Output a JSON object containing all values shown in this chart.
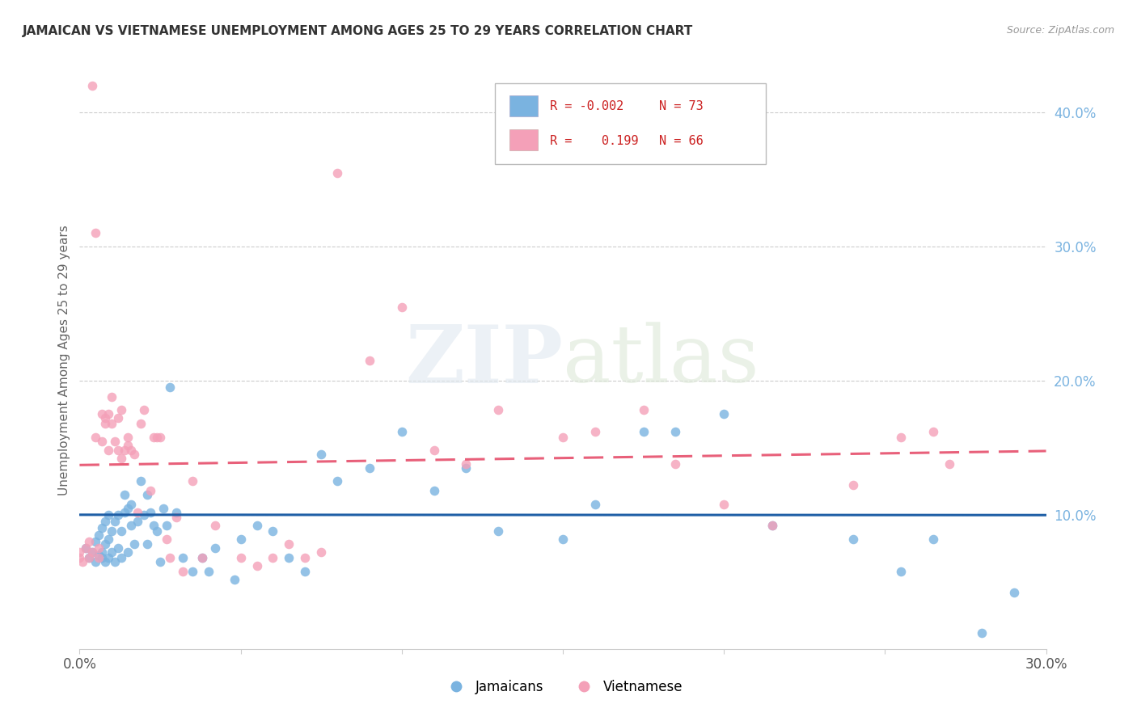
{
  "title": "JAMAICAN VS VIETNAMESE UNEMPLOYMENT AMONG AGES 25 TO 29 YEARS CORRELATION CHART",
  "source": "Source: ZipAtlas.com",
  "ylabel": "Unemployment Among Ages 25 to 29 years",
  "xlim": [
    0.0,
    0.3
  ],
  "ylim": [
    0.0,
    0.43
  ],
  "y_ticks_right": [
    0.1,
    0.2,
    0.3,
    0.4
  ],
  "y_tick_labels_right": [
    "10.0%",
    "20.0%",
    "30.0%",
    "40.0%"
  ],
  "legend_r_blue": "-0.002",
  "legend_n_blue": "73",
  "legend_r_pink": "0.199",
  "legend_n_pink": "66",
  "blue_color": "#7ab3e0",
  "pink_color": "#f4a0b8",
  "trend_blue_color": "#1f5fa6",
  "trend_pink_color": "#e8607a",
  "watermark_zip": "ZIP",
  "watermark_atlas": "atlas",
  "jamaicans_x": [
    0.002,
    0.003,
    0.004,
    0.005,
    0.005,
    0.006,
    0.006,
    0.007,
    0.007,
    0.007,
    0.008,
    0.008,
    0.008,
    0.009,
    0.009,
    0.009,
    0.01,
    0.01,
    0.011,
    0.011,
    0.012,
    0.012,
    0.013,
    0.013,
    0.014,
    0.014,
    0.015,
    0.015,
    0.016,
    0.016,
    0.017,
    0.018,
    0.019,
    0.02,
    0.021,
    0.021,
    0.022,
    0.023,
    0.024,
    0.025,
    0.026,
    0.027,
    0.028,
    0.03,
    0.032,
    0.035,
    0.038,
    0.04,
    0.042,
    0.048,
    0.05,
    0.055,
    0.06,
    0.065,
    0.07,
    0.075,
    0.08,
    0.09,
    0.1,
    0.11,
    0.12,
    0.13,
    0.15,
    0.16,
    0.175,
    0.185,
    0.2,
    0.215,
    0.24,
    0.255,
    0.265,
    0.28,
    0.29
  ],
  "jamaicans_y": [
    0.075,
    0.068,
    0.072,
    0.065,
    0.08,
    0.07,
    0.085,
    0.068,
    0.072,
    0.09,
    0.065,
    0.078,
    0.095,
    0.068,
    0.082,
    0.1,
    0.072,
    0.088,
    0.065,
    0.095,
    0.075,
    0.1,
    0.068,
    0.088,
    0.102,
    0.115,
    0.072,
    0.105,
    0.092,
    0.108,
    0.078,
    0.095,
    0.125,
    0.1,
    0.115,
    0.078,
    0.102,
    0.092,
    0.088,
    0.065,
    0.105,
    0.092,
    0.195,
    0.102,
    0.068,
    0.058,
    0.068,
    0.058,
    0.075,
    0.052,
    0.082,
    0.092,
    0.088,
    0.068,
    0.058,
    0.145,
    0.125,
    0.135,
    0.162,
    0.118,
    0.135,
    0.088,
    0.082,
    0.108,
    0.162,
    0.162,
    0.175,
    0.092,
    0.082,
    0.058,
    0.082,
    0.012,
    0.042
  ],
  "vietnamese_x": [
    0.0,
    0.0,
    0.001,
    0.002,
    0.003,
    0.003,
    0.004,
    0.004,
    0.005,
    0.005,
    0.006,
    0.006,
    0.007,
    0.007,
    0.008,
    0.008,
    0.009,
    0.009,
    0.01,
    0.01,
    0.011,
    0.012,
    0.012,
    0.013,
    0.013,
    0.014,
    0.015,
    0.015,
    0.016,
    0.017,
    0.018,
    0.019,
    0.02,
    0.022,
    0.023,
    0.024,
    0.025,
    0.027,
    0.028,
    0.03,
    0.032,
    0.035,
    0.038,
    0.042,
    0.05,
    0.055,
    0.06,
    0.065,
    0.07,
    0.075,
    0.08,
    0.09,
    0.1,
    0.11,
    0.12,
    0.13,
    0.15,
    0.16,
    0.175,
    0.185,
    0.2,
    0.215,
    0.24,
    0.255,
    0.265,
    0.27
  ],
  "vietnamese_y": [
    0.068,
    0.072,
    0.065,
    0.075,
    0.068,
    0.08,
    0.42,
    0.072,
    0.31,
    0.158,
    0.068,
    0.075,
    0.155,
    0.175,
    0.172,
    0.168,
    0.148,
    0.175,
    0.188,
    0.168,
    0.155,
    0.172,
    0.148,
    0.178,
    0.142,
    0.148,
    0.152,
    0.158,
    0.148,
    0.145,
    0.102,
    0.168,
    0.178,
    0.118,
    0.158,
    0.158,
    0.158,
    0.082,
    0.068,
    0.098,
    0.058,
    0.125,
    0.068,
    0.092,
    0.068,
    0.062,
    0.068,
    0.078,
    0.068,
    0.072,
    0.355,
    0.215,
    0.255,
    0.148,
    0.138,
    0.178,
    0.158,
    0.162,
    0.178,
    0.138,
    0.108,
    0.092,
    0.122,
    0.158,
    0.162,
    0.138
  ]
}
